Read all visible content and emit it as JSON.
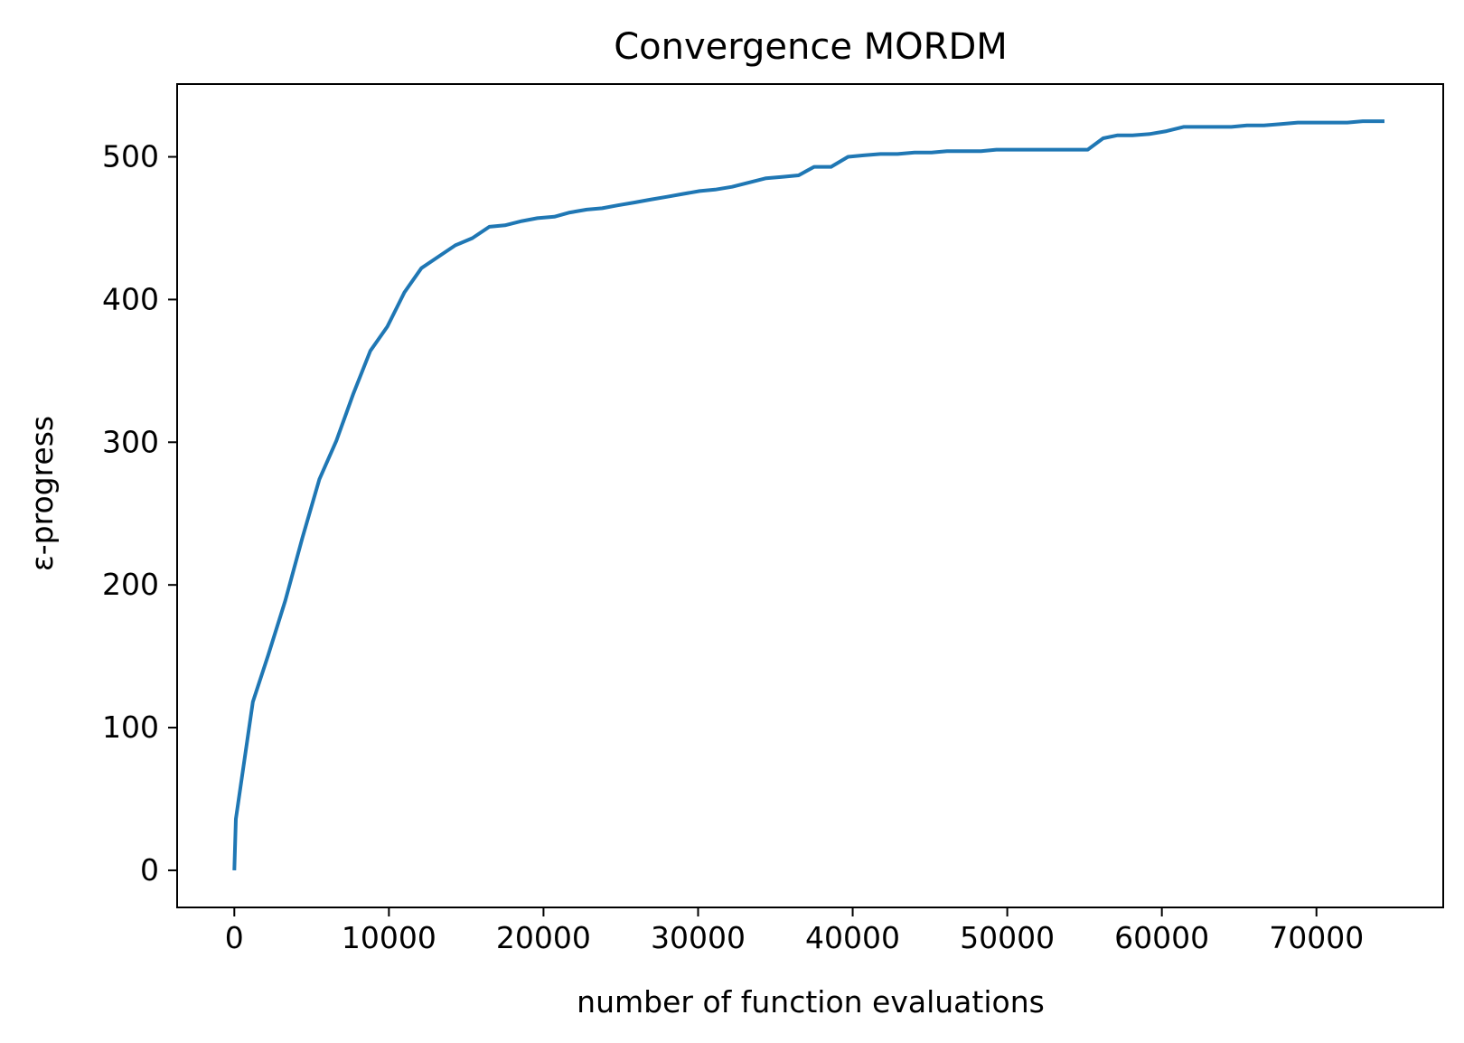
{
  "chart_data": {
    "type": "line",
    "title": "Convergence MORDM",
    "xlabel": "number of function evaluations",
    "ylabel": "ε-progress",
    "xlim": [
      -3700,
      78200
    ],
    "ylim": [
      -26,
      551
    ],
    "xticks": [
      0,
      10000,
      20000,
      30000,
      40000,
      50000,
      60000,
      70000
    ],
    "yticks": [
      0,
      100,
      200,
      300,
      400,
      500
    ],
    "grid": false,
    "series": [
      {
        "color": "#1f77b4",
        "x": [
          0,
          100,
          1200,
          2200,
          3300,
          4400,
          5500,
          6600,
          7700,
          8800,
          9900,
          11000,
          12100,
          13200,
          14300,
          15400,
          16500,
          17500,
          18600,
          19600,
          20700,
          21700,
          22800,
          23800,
          24800,
          25900,
          26900,
          28000,
          29000,
          30100,
          31100,
          32200,
          33300,
          34400,
          35500,
          36500,
          37500,
          38600,
          39700,
          40700,
          41800,
          42900,
          44000,
          45100,
          46100,
          47200,
          48300,
          49300,
          50300,
          51400,
          52500,
          53500,
          54600,
          55200,
          56200,
          57100,
          58100,
          59200,
          60300,
          61400,
          62400,
          63400,
          64500,
          65500,
          66600,
          67700,
          68800,
          69900,
          70900,
          72000,
          73000,
          74400
        ],
        "y": [
          0,
          36,
          118,
          151,
          189,
          233,
          274,
          301,
          334,
          364,
          381,
          405,
          422,
          430,
          438,
          443,
          451,
          452,
          455,
          457,
          458,
          461,
          463,
          464,
          466,
          468,
          470,
          472,
          474,
          476,
          477,
          479,
          482,
          485,
          486,
          487,
          493,
          493,
          500,
          501,
          502,
          502,
          503,
          503,
          504,
          504,
          504,
          505,
          505,
          505,
          505,
          505,
          505,
          505,
          513,
          515,
          515,
          516,
          518,
          521,
          521,
          521,
          521,
          522,
          522,
          523,
          524,
          524,
          524,
          524,
          525,
          525
        ]
      }
    ]
  }
}
